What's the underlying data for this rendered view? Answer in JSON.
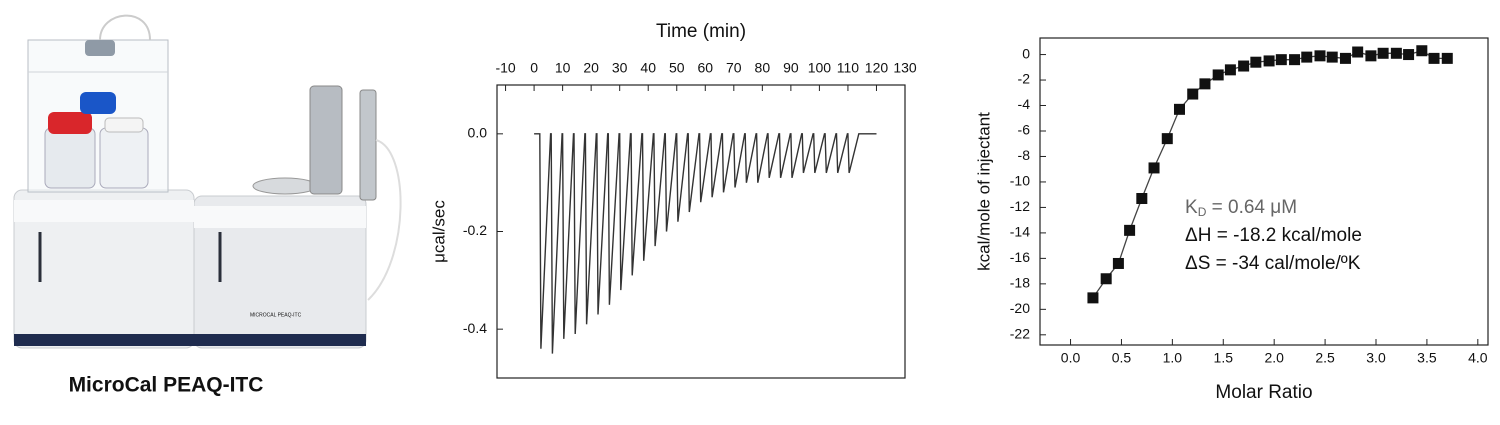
{
  "photo": {
    "caption": "MicroCal PEAQ-ITC",
    "panel_text": "MICROCAL PEAQ-ITC"
  },
  "chart_data": [
    {
      "type": "line",
      "x_label": "Time (min)",
      "y_label": "μcal/sec",
      "x_axis_position": "top",
      "xlim": [
        -13,
        130
      ],
      "ylim": [
        -0.5,
        0.1
      ],
      "xticks": [
        -10,
        0,
        10,
        20,
        30,
        40,
        50,
        60,
        70,
        80,
        90,
        100,
        110,
        120,
        130
      ],
      "yticks": [
        {
          "value": 0,
          "label": "0.0"
        },
        {
          "value": -0.2,
          "label": "-0.2"
        },
        {
          "value": -0.4,
          "label": "-0.4"
        }
      ],
      "x": [
        0,
        2,
        2.4,
        5.8,
        6,
        6.4,
        9.8,
        10,
        10.4,
        13.8,
        14,
        14.4,
        17.8,
        18,
        18.4,
        21.8,
        22,
        22.4,
        25.8,
        26,
        26.4,
        29.8,
        30,
        30.4,
        33.8,
        34,
        34.4,
        37.8,
        38,
        38.4,
        41.8,
        42,
        42.4,
        45.8,
        46,
        46.4,
        49.8,
        50,
        50.4,
        53.8,
        54,
        54.4,
        57.8,
        58,
        58.4,
        61.8,
        62,
        62.4,
        65.8,
        66,
        66.4,
        69.8,
        70,
        70.4,
        73.8,
        74,
        74.4,
        77.8,
        78,
        78.4,
        81.8,
        82,
        82.4,
        85.8,
        86,
        86.4,
        89.8,
        90,
        90.4,
        93.8,
        94,
        94.4,
        97.8,
        98,
        98.4,
        101.8,
        102,
        102.4,
        105.8,
        106,
        106.4,
        109.8,
        110,
        110.4,
        113.8,
        120
      ],
      "series": [
        {
          "color": "#333333",
          "values": [
            0,
            0,
            -0.44,
            0,
            0,
            -0.45,
            0,
            0,
            -0.42,
            0,
            0,
            -0.41,
            0,
            0,
            -0.39,
            0,
            0,
            -0.37,
            0,
            0,
            -0.35,
            0,
            0,
            -0.32,
            0,
            0,
            -0.29,
            0,
            0,
            -0.26,
            0,
            0,
            -0.23,
            0,
            0,
            -0.2,
            0,
            0,
            -0.18,
            0,
            0,
            -0.16,
            0,
            0,
            -0.14,
            0,
            0,
            -0.13,
            0,
            0,
            -0.12,
            0,
            0,
            -0.11,
            0,
            0,
            -0.1,
            0,
            0,
            -0.1,
            0,
            0,
            -0.09,
            0,
            0,
            -0.09,
            0,
            0,
            -0.09,
            0,
            0,
            -0.08,
            0,
            0,
            -0.08,
            0,
            0,
            -0.08,
            0,
            0,
            -0.08,
            0,
            0,
            -0.08,
            0,
            0
          ]
        }
      ]
    },
    {
      "type": "scatter",
      "x_label": "Molar Ratio",
      "y_label": "kcal/mole of injectant",
      "x_axis_position": "bottom",
      "connect": true,
      "xlim": [
        -0.3,
        4.1
      ],
      "ylim": [
        -22.8,
        1.3
      ],
      "xticks": [
        {
          "value": 0,
          "label": "0.0"
        },
        0.5,
        {
          "value": 1,
          "label": "1.0"
        },
        1.5,
        {
          "value": 2,
          "label": "2.0"
        },
        2.5,
        {
          "value": 3,
          "label": "3.0"
        },
        3.5,
        {
          "value": 4,
          "label": "4.0"
        }
      ],
      "yticks": [
        0,
        -2,
        -4,
        -6,
        -8,
        -10,
        -12,
        -14,
        -16,
        -18,
        -20,
        -22
      ],
      "x": [
        0.22,
        0.35,
        0.47,
        0.58,
        0.7,
        0.82,
        0.95,
        1.07,
        1.2,
        1.32,
        1.45,
        1.57,
        1.7,
        1.82,
        1.95,
        2.07,
        2.2,
        2.32,
        2.45,
        2.57,
        2.7,
        2.82,
        2.95,
        3.07,
        3.2,
        3.32,
        3.45,
        3.57,
        3.7
      ],
      "series": [
        {
          "color": "#111111",
          "values": [
            -19.1,
            -17.6,
            -16.4,
            -13.8,
            -11.3,
            -8.9,
            -6.6,
            -4.3,
            -3.1,
            -2.3,
            -1.6,
            -1.2,
            -0.9,
            -0.6,
            -0.5,
            -0.4,
            -0.4,
            -0.2,
            -0.1,
            -0.2,
            -0.3,
            0.2,
            -0.1,
            0.1,
            0.1,
            0,
            0.3,
            -0.3,
            -0.3
          ]
        }
      ],
      "annotations": [
        [
          "K",
          "D",
          " = 0.64 μM"
        ],
        "ΔH = -18.2 kcal/mole",
        "ΔS = -34 cal/mole/ºK"
      ]
    }
  ]
}
